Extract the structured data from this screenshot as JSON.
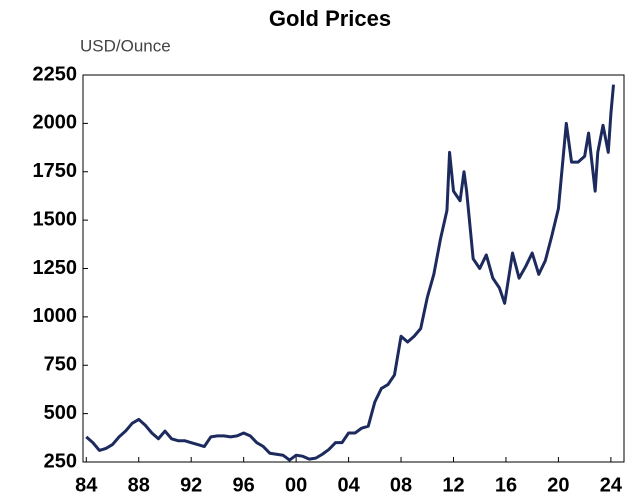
{
  "chart_data": {
    "type": "line",
    "title": "Gold Prices",
    "y_label": "USD/Ounce",
    "x": [
      1984,
      1984.5,
      1985,
      1985.5,
      1986,
      1986.5,
      1987,
      1987.5,
      1988,
      1988.5,
      1989,
      1989.5,
      1990,
      1990.5,
      1991,
      1991.5,
      1992,
      1992.5,
      1993,
      1993.5,
      1994,
      1994.5,
      1995,
      1995.5,
      1996,
      1996.5,
      1997,
      1997.5,
      1998,
      1998.5,
      1999,
      1999.5,
      2000,
      2000.5,
      2001,
      2001.5,
      2002,
      2002.5,
      2003,
      2003.5,
      2004,
      2004.5,
      2005,
      2005.5,
      2006,
      2006.5,
      2007,
      2007.5,
      2008,
      2008.5,
      2009,
      2009.5,
      2010,
      2010.5,
      2011,
      2011.5,
      2011.7,
      2012,
      2012.5,
      2012.8,
      2013,
      2013.5,
      2014,
      2014.5,
      2015,
      2015.5,
      2015.9,
      2016.5,
      2017,
      2017.5,
      2018,
      2018.5,
      2019,
      2019.5,
      2020,
      2020.6,
      2021,
      2021.5,
      2022,
      2022.3,
      2022.8,
      2023,
      2023.4,
      2023.8,
      2024,
      2024.2
    ],
    "series": [
      {
        "name": "Gold",
        "color": "#1c2a5e",
        "values": [
          380,
          350,
          310,
          320,
          340,
          380,
          410,
          450,
          470,
          440,
          400,
          370,
          410,
          370,
          360,
          360,
          350,
          340,
          330,
          380,
          385,
          385,
          380,
          385,
          400,
          385,
          350,
          330,
          295,
          290,
          285,
          260,
          285,
          280,
          265,
          270,
          290,
          315,
          350,
          350,
          400,
          400,
          425,
          435,
          560,
          630,
          650,
          700,
          900,
          870,
          900,
          940,
          1100,
          1220,
          1400,
          1550,
          1850,
          1650,
          1600,
          1750,
          1650,
          1300,
          1250,
          1320,
          1200,
          1150,
          1070,
          1330,
          1200,
          1260,
          1330,
          1220,
          1290,
          1420,
          1560,
          2000,
          1800,
          1800,
          1830,
          1950,
          1650,
          1850,
          1990,
          1850,
          2050,
          2200
        ]
      }
    ],
    "xlim": [
      1983.75,
      2025
    ],
    "xticks": [
      {
        "value": 1984,
        "label": "84"
      },
      {
        "value": 1988,
        "label": "88"
      },
      {
        "value": 1992,
        "label": "92"
      },
      {
        "value": 1996,
        "label": "96"
      },
      {
        "value": 2000,
        "label": "00"
      },
      {
        "value": 2004,
        "label": "04"
      },
      {
        "value": 2008,
        "label": "08"
      },
      {
        "value": 2012,
        "label": "12"
      },
      {
        "value": 2016,
        "label": "16"
      },
      {
        "value": 2020,
        "label": "20"
      },
      {
        "value": 2024,
        "label": "24"
      }
    ],
    "ylim": [
      250,
      2250
    ],
    "yticks": [
      250,
      500,
      750,
      1000,
      1250,
      1500,
      1750,
      2000,
      2250
    ]
  }
}
